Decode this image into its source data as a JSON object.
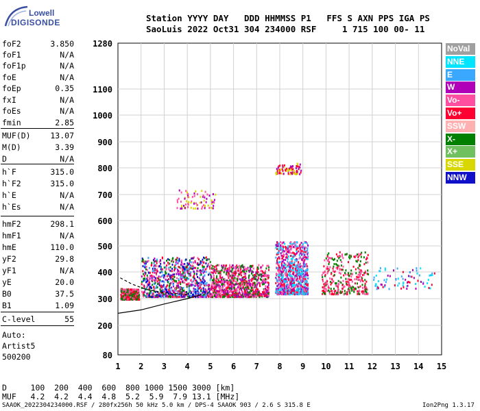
{
  "logo": {
    "line1": "Lowell",
    "line2": "DIGISONDE"
  },
  "header": {
    "row1": "Station YYYY DAY   DDD HHMMSS P1   FFS S AXN PPS IGA PS",
    "row2": "SaoLuis 2022 Oct31 304 234000 RSF     1 715 100 00- 11"
  },
  "params": [
    {
      "key": "foF2",
      "value": "3.850"
    },
    {
      "key": "foF1",
      "value": "N/A"
    },
    {
      "key": "foF1p",
      "value": "N/A"
    },
    {
      "key": "foE",
      "value": "N/A"
    },
    {
      "key": "foEp",
      "value": "0.35"
    },
    {
      "key": "fxI",
      "value": "N/A"
    },
    {
      "key": "foEs",
      "value": "N/A"
    },
    {
      "key": "fmin",
      "value": "2.85"
    },
    {
      "key": "MUF(D)",
      "value": "13.07"
    },
    {
      "key": "M(D)",
      "value": "3.39"
    },
    {
      "key": "D",
      "value": "N/A"
    },
    {
      "key": "h`F",
      "value": "315.0"
    },
    {
      "key": "h`F2",
      "value": "315.0"
    },
    {
      "key": "h`E",
      "value": "N/A"
    },
    {
      "key": "h`Es",
      "value": "N/A"
    },
    {
      "key": "hmF2",
      "value": "298.1"
    },
    {
      "key": "hmF1",
      "value": "N/A"
    },
    {
      "key": "hmE",
      "value": "110.0"
    },
    {
      "key": "yF2",
      "value": "29.8"
    },
    {
      "key": "yF1",
      "value": "N/A"
    },
    {
      "key": "yE",
      "value": "20.0"
    },
    {
      "key": "B0",
      "value": "37.5"
    },
    {
      "key": "B1",
      "value": "1.09"
    },
    {
      "key": "C-level",
      "value": "55"
    }
  ],
  "auto_notes": {
    "line1": "Auto:",
    "line2": "Artist5",
    "line3": "500200"
  },
  "muf_table": {
    "d_row": "D     100  200  400  600  800 1000 1500 3000 [km]",
    "muf_row": "MUF   4.2  4.2  4.4  4.8  5.2  5.9  7.9 13.1 [MHz]"
  },
  "footer": {
    "left": "SAAOK_2022304234000.RSF / 280fx256h 50 kHz 5.0 km / DPS-4 SAAOK 903 / 2.6 S 315.8 E",
    "right": "Ion2Png 1.3.17"
  },
  "legend": [
    {
      "label": "NoVal",
      "color": "#a0a0a0"
    },
    {
      "label": "NNE",
      "color": "#00e5ff"
    },
    {
      "label": "E",
      "color": "#3aa8ff"
    },
    {
      "label": "W",
      "color": "#b000b8"
    },
    {
      "label": "Vo-",
      "color": "#ff4fa0"
    },
    {
      "label": "Vo+",
      "color": "#ff0030"
    },
    {
      "label": "SSW",
      "color": "#ffb0b0"
    },
    {
      "label": "X-",
      "color": "#008000"
    },
    {
      "label": "X+",
      "color": "#70c060"
    },
    {
      "label": "SSE",
      "color": "#d8d800"
    },
    {
      "label": "NNW",
      "color": "#1010c8"
    }
  ],
  "chart_data": {
    "type": "scatter",
    "title": "",
    "xlabel": "",
    "ylabel": "",
    "x_ticks": [
      1,
      2,
      3,
      4,
      5,
      6,
      7,
      8,
      9,
      10,
      11,
      12,
      13,
      14,
      15
    ],
    "xlim": [
      1,
      15
    ],
    "y_ticks": [
      80,
      200,
      300,
      400,
      500,
      600,
      700,
      800,
      900,
      1000,
      1100,
      1280
    ],
    "ylim": [
      80,
      1280
    ],
    "y_scale": "nonlinear",
    "grid": true,
    "legend_placement": "right",
    "clusters": [
      {
        "x_range": [
          1.1,
          1.9
        ],
        "h_range": [
          300,
          340
        ],
        "mode": "Vo+/X-",
        "density": "medium"
      },
      {
        "x_range": [
          2.0,
          5.0
        ],
        "h_range": [
          310,
          460
        ],
        "mode": "mixed W/Vo+/X-",
        "density": "high"
      },
      {
        "x_range": [
          5.0,
          7.5
        ],
        "h_range": [
          310,
          430
        ],
        "mode": "mixed Vo+/W",
        "density": "high"
      },
      {
        "x_range": [
          3.5,
          5.2
        ],
        "h_range": [
          650,
          720
        ],
        "mode": "W/SSE",
        "density": "low"
      },
      {
        "x_range": [
          7.8,
          9.2
        ],
        "h_range": [
          320,
          520
        ],
        "mode": "mixed E/W/Vo+",
        "density": "high"
      },
      {
        "x_range": [
          7.8,
          8.9
        ],
        "h_range": [
          780,
          820
        ],
        "mode": "SSE",
        "density": "low"
      },
      {
        "x_range": [
          9.8,
          11.8
        ],
        "h_range": [
          320,
          480
        ],
        "mode": "Vo+/X-",
        "density": "medium"
      },
      {
        "x_range": [
          12.0,
          14.7
        ],
        "h_range": [
          340,
          420
        ],
        "mode": "NNE/E/W",
        "density": "low"
      }
    ],
    "profile_curves": [
      {
        "name": "",
        "points": [
          [
            1.0,
            245
          ],
          [
            2.0,
            258
          ],
          [
            3.0,
            280
          ],
          [
            4.0,
            300
          ],
          [
            4.6,
            315
          ]
        ]
      },
      {
        "name": "",
        "points": [
          [
            1.1,
            378
          ],
          [
            1.6,
            355
          ],
          [
            2.2,
            335
          ],
          [
            3.0,
            322
          ],
          [
            4.0,
            316
          ]
        ],
        "style": "dashed"
      }
    ]
  }
}
